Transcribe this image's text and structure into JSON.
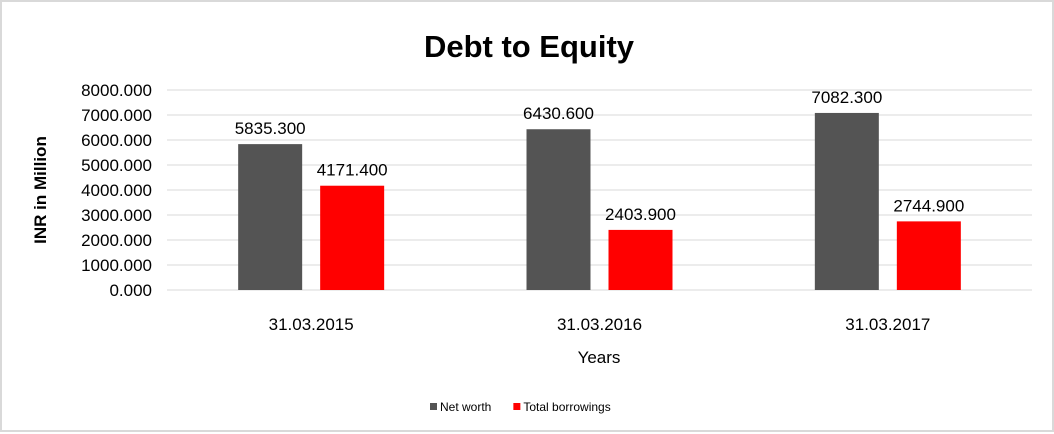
{
  "chart_data": {
    "type": "bar",
    "title": "Debt to Equity",
    "xlabel": "Years",
    "ylabel": "INR in Million",
    "categories": [
      "31.03.2015",
      "31.03.2016",
      "31.03.2017"
    ],
    "series": [
      {
        "name": "Net worth",
        "values": [
          5835.3,
          6430.6,
          7082.3
        ],
        "labels": [
          "5835.300",
          "6430.600",
          "7082.300"
        ],
        "color": "#545454"
      },
      {
        "name": "Total borrowings",
        "values": [
          4171.4,
          2403.9,
          2744.9
        ],
        "labels": [
          "4171.400",
          "2403.900",
          "2744.900"
        ],
        "color": "#ff0000"
      }
    ],
    "ylim": [
      0,
      8000
    ],
    "yticks": [
      "0.000",
      "1000.000",
      "2000.000",
      "3000.000",
      "4000.000",
      "5000.000",
      "6000.000",
      "7000.000",
      "8000.000"
    ],
    "grid": true,
    "legend": "bottom"
  }
}
